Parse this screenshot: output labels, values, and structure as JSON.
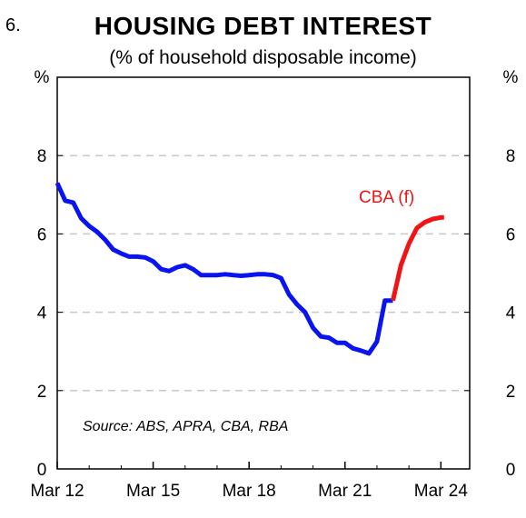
{
  "figure_number": "6.",
  "chart_data": {
    "type": "line",
    "title": "HOUSING DEBT INTEREST",
    "subtitle": "(% of household disposable income)",
    "y_unit_left": "%",
    "y_unit_right": "%",
    "ylim": [
      0,
      10
    ],
    "yticks": [
      "0",
      "2",
      "4",
      "6",
      "8"
    ],
    "ytick_values": [
      0,
      2,
      4,
      6,
      8
    ],
    "x_tick_labels": [
      "Mar 12",
      "Mar 15",
      "Mar 18",
      "Mar 21",
      "Mar 24"
    ],
    "x_tick_values": [
      2012.0,
      2015.0,
      2018.0,
      2021.0,
      2024.0
    ],
    "xlim": [
      2012.0,
      2024.9
    ],
    "grid": "horizontal dashed",
    "series": [
      {
        "color": "#0a14f0",
        "x": [
          2012.0,
          2012.25,
          2012.5,
          2012.75,
          2013.0,
          2013.25,
          2013.5,
          2013.75,
          2014.0,
          2014.25,
          2014.5,
          2014.75,
          2015.0,
          2015.25,
          2015.5,
          2015.75,
          2016.0,
          2016.25,
          2016.5,
          2016.75,
          2017.0,
          2017.25,
          2017.5,
          2017.75,
          2018.0,
          2018.25,
          2018.5,
          2018.75,
          2019.0,
          2019.25,
          2019.5,
          2019.75,
          2020.0,
          2020.25,
          2020.5,
          2020.75,
          2021.0,
          2021.25,
          2021.5,
          2021.75,
          2022.0,
          2022.25,
          2022.5
        ],
        "y": [
          7.3,
          6.85,
          6.8,
          6.4,
          6.2,
          6.05,
          5.85,
          5.6,
          5.5,
          5.42,
          5.42,
          5.4,
          5.3,
          5.1,
          5.05,
          5.15,
          5.2,
          5.1,
          4.95,
          4.95,
          4.95,
          4.97,
          4.95,
          4.93,
          4.95,
          4.97,
          4.97,
          4.95,
          4.87,
          4.45,
          4.2,
          4.0,
          3.6,
          3.38,
          3.35,
          3.22,
          3.22,
          3.08,
          3.02,
          2.95,
          3.25,
          4.3,
          4.3
        ]
      },
      {
        "label": "CBA (f)",
        "color": "#f01414",
        "x": [
          2022.5,
          2022.75,
          2023.0,
          2023.25,
          2023.5,
          2023.75,
          2024.0,
          2024.1
        ],
        "y": [
          4.3,
          5.2,
          5.75,
          6.15,
          6.3,
          6.38,
          6.42,
          6.42
        ]
      }
    ],
    "annotations": [
      {
        "text": "CBA (f)",
        "color": "#f01414"
      },
      {
        "text": "Source: ABS, APRA, CBA, RBA"
      }
    ]
  }
}
